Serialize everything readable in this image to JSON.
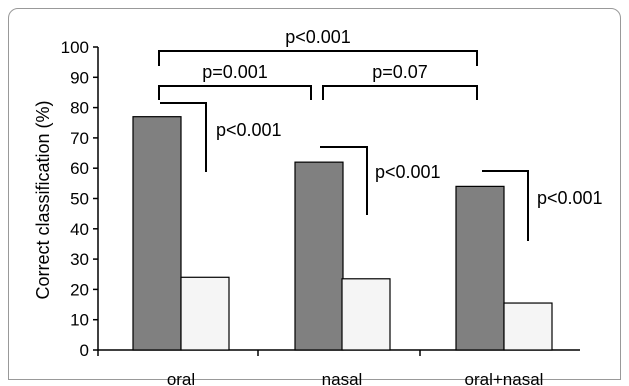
{
  "chart_data": {
    "type": "bar",
    "ylabel": "Correct classification (%)",
    "ylim": [
      0,
      100
    ],
    "yticks": [
      0,
      10,
      20,
      30,
      40,
      50,
      60,
      70,
      80,
      90,
      100
    ],
    "categories": [
      "oral",
      "nasal",
      "oral+nasal"
    ],
    "series": [
      {
        "values": [
          77,
          62,
          54
        ],
        "color": "#808080"
      },
      {
        "values": [
          24,
          23.5,
          15.5
        ],
        "color": "#f5f5f5"
      }
    ],
    "annotations": {
      "within": [
        "p<0.001",
        "p<0.001",
        "p<0.001"
      ],
      "between": [
        {
          "text": "p<0.001",
          "from": "oral",
          "to": "oral+nasal"
        },
        {
          "text": "p=0.001",
          "from": "oral",
          "to": "nasal"
        },
        {
          "text": "p=0.07",
          "from": "nasal",
          "to": "oral+nasal"
        }
      ]
    }
  }
}
